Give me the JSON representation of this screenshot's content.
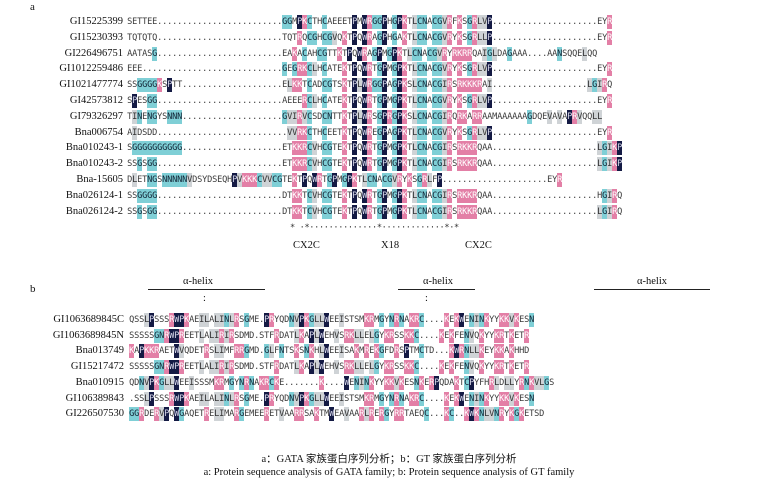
{
  "panel_a": {
    "letter": "a",
    "rows": [
      {
        "label": "GI15225399",
        "seq": "SETTEE.........................GGMPKCTHCAEEETPMWRGGPHGPKTLCNACGVRFKSGRLVP.....................EYR"
      },
      {
        "label": "GI15230393",
        "seq": "TQTQTQ.........................TQTRQCGHCGVQKTPQWRAGPHGAKTLCNACGVRYKSGRLLP.....................EYR"
      },
      {
        "label": "GI226496751",
        "seq": "AATASG.........................EAKACAHCGTTKTPQWRAGPMGPKTLCNACGVRYRKRRQAIGLDAGAAA....AANSQQELQQ"
      },
      {
        "label": "GI1012259486",
        "seq": "EEE............................GEGRKCLHCATEKTPQWRTGPMGPKTLCNACGVRYKSGRLVP.....................EYR"
      },
      {
        "label": "GI1021477774",
        "seq": "SSGGGGKSPTT....................ELKKTCADCGTSKTPLWRGGPAGPKSLCNACGIRSRKKKRAI...................LGIRQ"
      },
      {
        "label": "GI42573812",
        "seq": "SPESGG.........................AEEERCLHCATEKTPQWRTGPMGPKTLCNACGVRYKSGRLVP.....................EYR"
      },
      {
        "label": "GI79326297",
        "seq": "TINENGYSNNN....................GVIRVCSDCNTTKTPLWRSGPRGPKSLCNACGIRQRKARRAAMAAAAAAGDQEVAVAPRVQQLL"
      },
      {
        "label": "Bna006754",
        "seq": "AIDSDD..........................VVRKCTHCEETKTPQWREGPAGPKTLCNACGVRYKSGRLVP.....................EYR"
      },
      {
        "label": "Bna010243-1",
        "seq": "SGGGGGGGGGG....................ETKKRCVHCGTEKTPQWRTGPMGPKTLCNACGIRSRKKRQAA.....................LGIKP"
      },
      {
        "label": "Bna010243-2",
        "seq": "SSGSGG.........................ETKKRCVHCGTEKTPQWRTGPMGPKTLCNACGIRSRKKRQAA.....................LGIKP"
      },
      {
        "label": "Bna-15605",
        "seq": "DLETNGSNNNNNVDSYDSEQHPVKKKCVVCGTEKTPQWRTGPMGPKTLCNACGVRYKSGRLFP.....................EYR"
      },
      {
        "label": "Bna026124-1",
        "seq": "SSGGGG.........................DTKKTCVHCGTEKTPQWRTGPMGPKTLCNACGIRSRKKRQAA.....................HGIRQ"
      },
      {
        "label": "Bna026124-2",
        "seq": "SSGSGG.........................DTKKTCVHCGTEKTPQWRTGPMGPKTLCNACGIRSRKKRQAA.....................LGIRQ"
      }
    ],
    "consensus_marks": "* ·*··············*·············*·*",
    "motifs": [
      "CX2C",
      "X18",
      "CX2C"
    ]
  },
  "panel_b": {
    "letter": "b",
    "helix_labels": [
      "α-helix",
      "α-helix",
      "α-helix"
    ],
    "helix_colons": [
      ":",
      ":"
    ],
    "rows": [
      {
        "label": "GI1063689845C",
        "seq": "QSSLPSSSRWPKAEILALINLRSGME.PRYQDNVPKGLLWEEISTSMKRMGYNRNAKRC....KEKWENINKYYKKVKESN"
      },
      {
        "label": "GI1063689845N",
        "seq": "SSSSSGNRWPREETLALIRIRSDMD.STFRDATLKAPLWEHVSRKLLELGYKRSSKKC....KEKFENVQKYYKRTKETR"
      },
      {
        "label": "Bna013749",
        "seq": "KAPKKRAETWVQDETRSLIMFRRGMD.GLFNTSKSNKHLWEEISAKMREKGFDRSPTMCTD...KWRNLLKEYKKAKHHD"
      },
      {
        "label": "GI15217472",
        "seq": "SSSSSGNRWPREETLALIRIRSDMD.STFRDATLKAPLWEHVSRKLLELGYKRSSKKC....KEKFENVQKYYKRTKETR"
      },
      {
        "label": "Bna010915",
        "seq": "QDNVPKGLLWEEISSSMKRMGYNRNAKRCKE.......K....WENINKYYKKVKESNKERPQDAKTCPYFHRLDLLYRNKVLGS"
      },
      {
        "label": "GI106389843",
        "seq": ".SSLPSSSRWPKAEILALINLRSGME.PRYQDNVPKGLLWEEISTSMKRMGYNRNAKRC....KEKWENINKYYKKVKESN"
      },
      {
        "label": "GI226507530",
        "seq": "GGRDERVPQWGAQETRELIMARGEMEERETVAARRSAKTMWEAVAARLRERGYRRTAEQC...KC..KWKNLVNRYKGKETSD"
      }
    ]
  },
  "caption": {
    "zh": "a：GATA 家族蛋白序列分析；b：GT 家族蛋白序列分析",
    "en": "a: Protein sequence analysis of GATA family; b: Protein sequence analysis of GT family"
  }
}
